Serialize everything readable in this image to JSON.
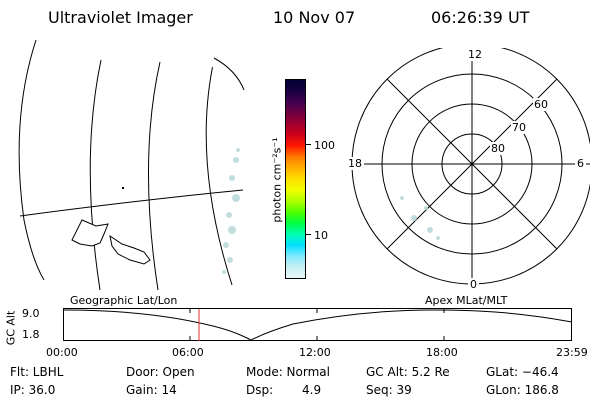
{
  "header": {
    "title": "Ultraviolet Imager",
    "date": "10 Nov 07",
    "time": "06:26:39 UT"
  },
  "colorbar": {
    "label": "photon cm⁻²s⁻¹",
    "ticks": [
      "100",
      "10"
    ],
    "colors": [
      "#000033",
      "#1a0040",
      "#400050",
      "#700040",
      "#a00030",
      "#d00018",
      "#ff1a00",
      "#ff7a00",
      "#ffb000",
      "#ffe000",
      "#f0ff00",
      "#b0ff00",
      "#50ff00",
      "#00ff40",
      "#00ffb0",
      "#00e0ff",
      "#80e8ff",
      "#c8f0f4",
      "#e8f6f8"
    ]
  },
  "polar": {
    "labels": {
      "top": "12",
      "bottom": "0",
      "left": "18",
      "right": "6"
    },
    "rings": [
      "60",
      "70",
      "80"
    ]
  },
  "timeline": {
    "left_title": "Geographic Lat/Lon",
    "right_title": "Apex MLat/MLT",
    "y_axis_label": "GC Alt",
    "y_max": "9.0",
    "y_min": "1.8",
    "x_ticks": [
      "00:00",
      "06:00",
      "12:00",
      "18:00",
      "23:59"
    ],
    "marker_time": "06:26:39"
  },
  "info": {
    "flt": "Flt: LBHL",
    "ip": "IP: 36.0",
    "door": "Door: Open",
    "gain": "Gain: 14",
    "mode": "Mode: Normal",
    "dsp": "Dsp:",
    "dsp_value": "4.9",
    "gc_alt": "GC Alt: 5.2 Re",
    "seq": "Seq: 39",
    "glat": "GLat: −46.4",
    "glon": "GLon: 186.8"
  },
  "colors": {
    "marker": "#e03030",
    "aurora_speckle": "#b8d8d8"
  }
}
